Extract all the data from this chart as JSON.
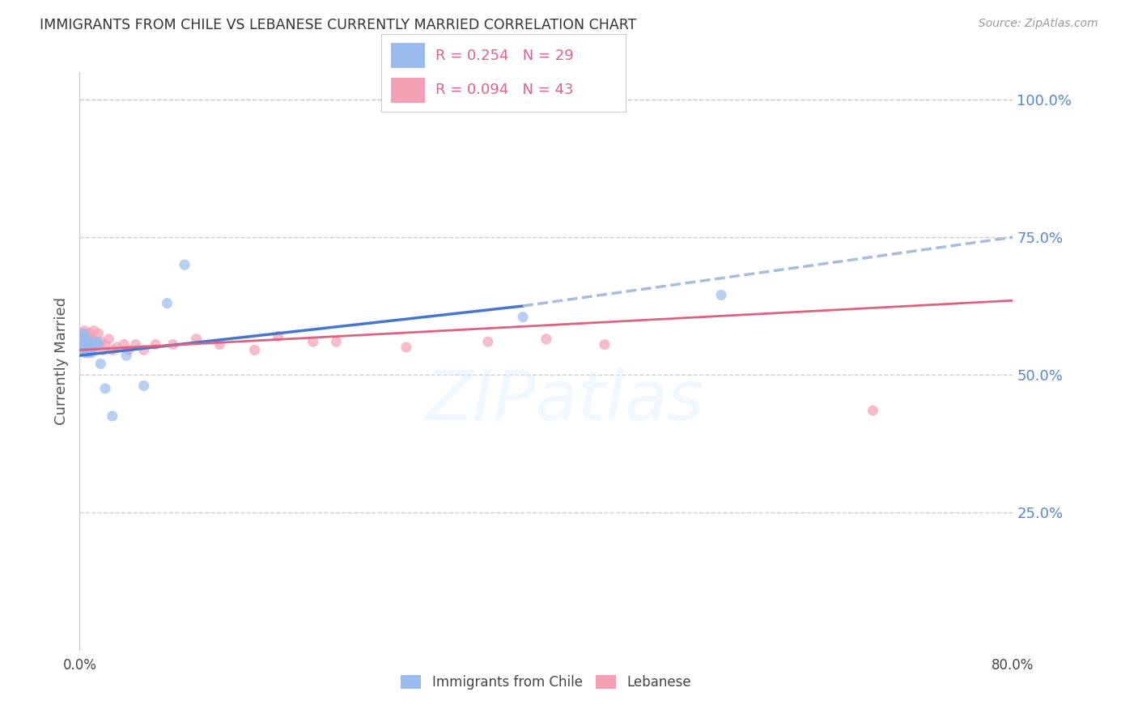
{
  "title": "IMMIGRANTS FROM CHILE VS LEBANESE CURRENTLY MARRIED CORRELATION CHART",
  "source": "Source: ZipAtlas.com",
  "ylabel": "Currently Married",
  "right_ytick_labels": [
    "100.0%",
    "75.0%",
    "50.0%",
    "25.0%"
  ],
  "right_ytick_values": [
    1.0,
    0.75,
    0.5,
    0.25
  ],
  "xlim": [
    0.0,
    0.8
  ],
  "ylim": [
    0.0,
    1.05
  ],
  "background_color": "#ffffff",
  "grid_color": "#ccccdd",
  "right_axis_color": "#5588cc",
  "scatter_chile_color": "#99bbee",
  "scatter_lebanese_color": "#f4a0b5",
  "scatter_alpha": 0.7,
  "scatter_size": 90,
  "trend_chile_color": "#4477cc",
  "trend_lebanese_color": "#e06080",
  "trend_dashed_color": "#aabcdd",
  "watermark": "ZIPatlas",
  "legend_chile_label": "R = 0.254   N = 29",
  "legend_leb_label": "R = 0.094   N = 43",
  "legend_text_color": "#e06090",
  "bottom_legend_chile": "Immigrants from Chile",
  "bottom_legend_leb": "Lebanese",
  "chile_scatter_x": [
    0.002,
    0.003,
    0.003,
    0.004,
    0.004,
    0.005,
    0.005,
    0.006,
    0.006,
    0.007,
    0.007,
    0.008,
    0.008,
    0.009,
    0.01,
    0.011,
    0.012,
    0.013,
    0.015,
    0.016,
    0.018,
    0.022,
    0.028,
    0.04,
    0.055,
    0.075,
    0.09,
    0.38,
    0.55
  ],
  "chile_scatter_y": [
    0.555,
    0.56,
    0.575,
    0.545,
    0.57,
    0.54,
    0.56,
    0.555,
    0.565,
    0.54,
    0.555,
    0.56,
    0.545,
    0.555,
    0.54,
    0.545,
    0.555,
    0.555,
    0.56,
    0.555,
    0.52,
    0.475,
    0.425,
    0.535,
    0.48,
    0.63,
    0.7,
    0.605,
    0.645
  ],
  "lebanese_scatter_x": [
    0.002,
    0.003,
    0.003,
    0.004,
    0.004,
    0.005,
    0.005,
    0.006,
    0.006,
    0.007,
    0.007,
    0.008,
    0.008,
    0.009,
    0.01,
    0.011,
    0.012,
    0.013,
    0.015,
    0.016,
    0.018,
    0.02,
    0.022,
    0.025,
    0.028,
    0.032,
    0.038,
    0.042,
    0.048,
    0.055,
    0.065,
    0.08,
    0.1,
    0.12,
    0.15,
    0.17,
    0.2,
    0.22,
    0.28,
    0.35,
    0.45,
    0.68,
    0.4
  ],
  "lebanese_scatter_y": [
    0.565,
    0.575,
    0.555,
    0.58,
    0.555,
    0.57,
    0.545,
    0.57,
    0.55,
    0.565,
    0.545,
    0.575,
    0.555,
    0.555,
    0.565,
    0.55,
    0.58,
    0.56,
    0.555,
    0.575,
    0.56,
    0.545,
    0.555,
    0.565,
    0.545,
    0.55,
    0.555,
    0.545,
    0.555,
    0.545,
    0.555,
    0.555,
    0.565,
    0.555,
    0.545,
    0.57,
    0.56,
    0.56,
    0.55,
    0.56,
    0.555,
    0.435,
    0.565
  ],
  "chile_trend_x0": 0.0,
  "chile_trend_y0": 0.535,
  "chile_trend_x1": 0.38,
  "chile_trend_y1": 0.625,
  "chile_trend_xd0": 0.38,
  "chile_trend_yd0": 0.625,
  "chile_trend_xd1": 0.8,
  "chile_trend_yd1": 0.75,
  "leb_trend_x0": 0.0,
  "leb_trend_y0": 0.545,
  "leb_trend_x1": 0.8,
  "leb_trend_y1": 0.635
}
